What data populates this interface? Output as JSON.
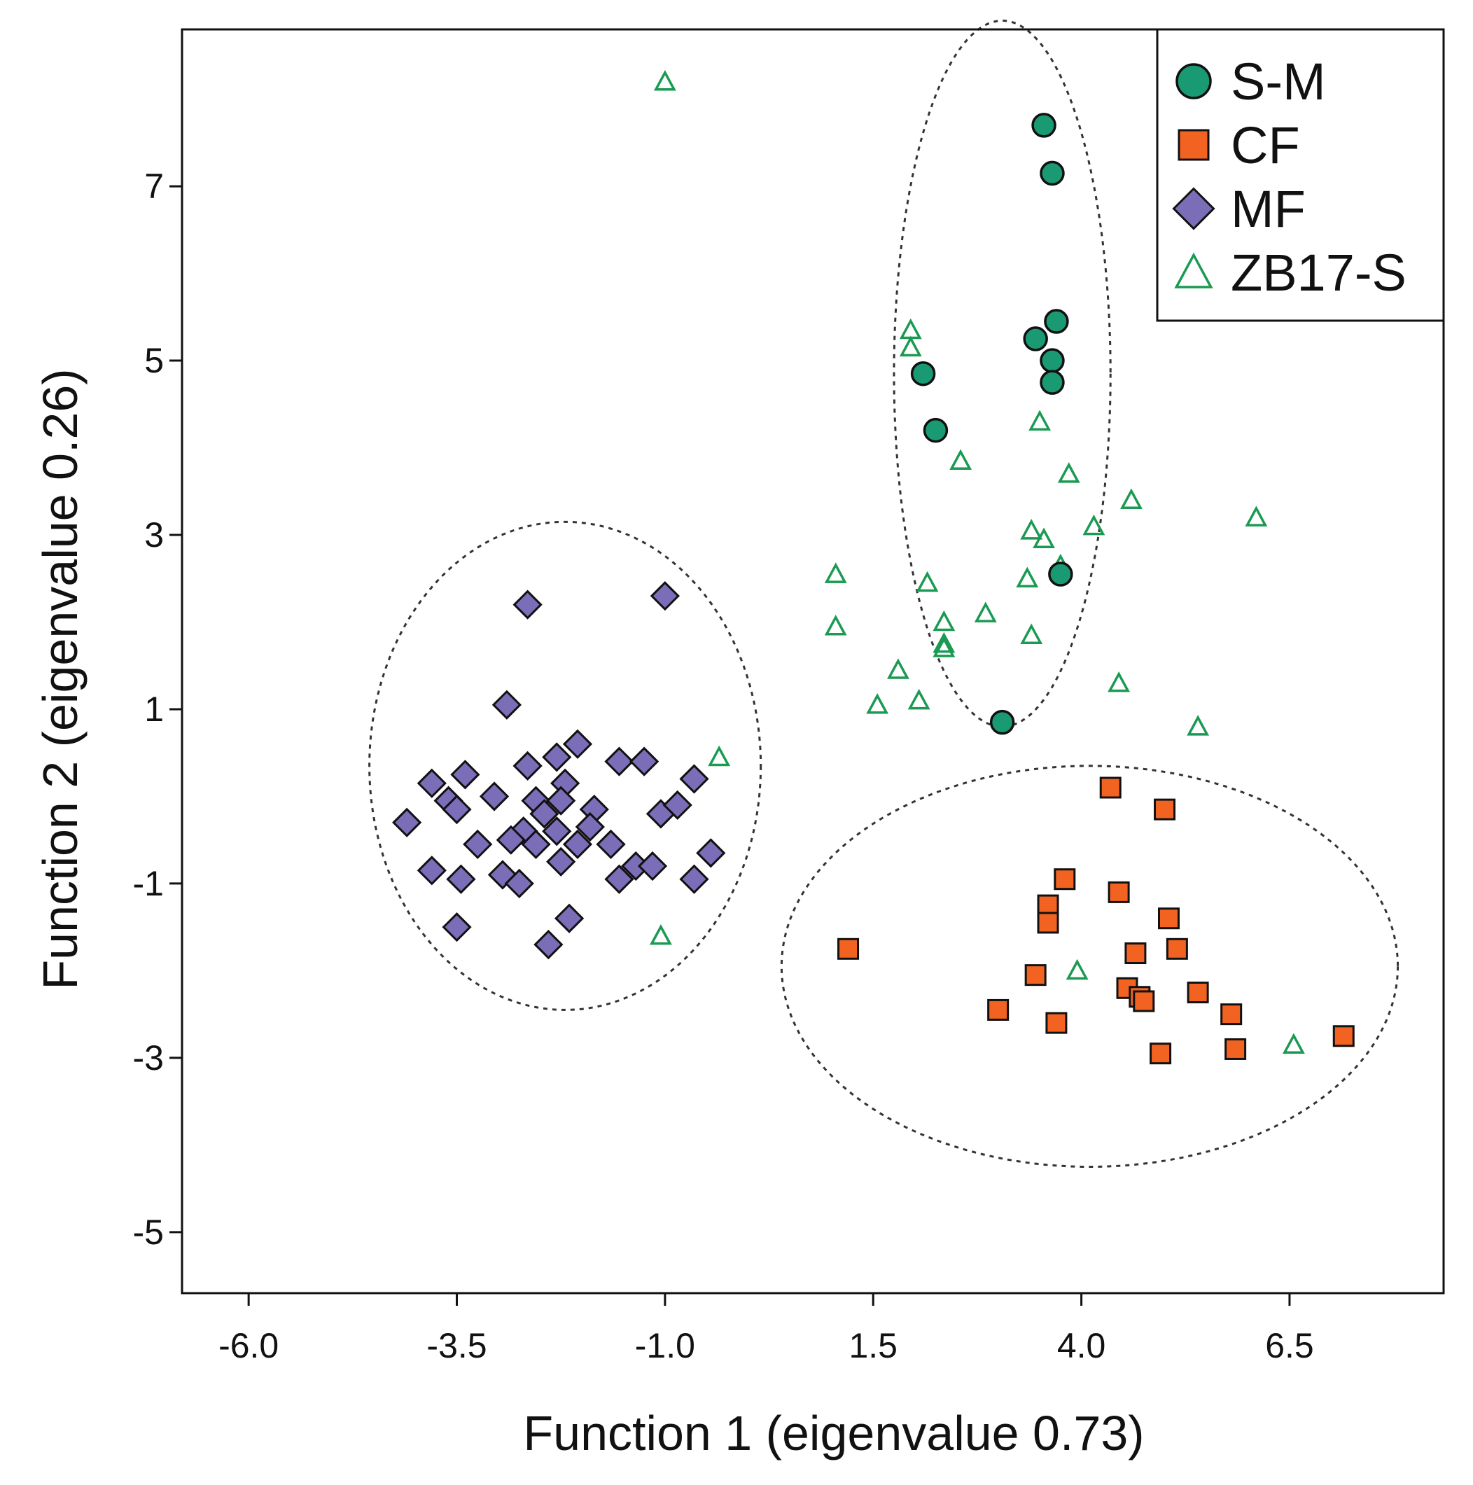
{
  "chart_data": {
    "type": "scatter",
    "title": "",
    "xlabel": "Function 1 (eigenvalue 0.73)",
    "ylabel": "Function 2 (eigenvalue 0.26)",
    "xlim": [
      -6.8,
      8.35
    ],
    "ylim": [
      -5.7,
      8.8
    ],
    "xticks": [
      -6.0,
      -3.5,
      -1.0,
      1.5,
      4.0,
      6.5
    ],
    "xtick_labels": [
      "-6.0",
      "-3.5",
      "-1.0",
      "1.5",
      "4.0",
      "6.5"
    ],
    "yticks": [
      -5,
      -3,
      -1,
      1,
      3,
      5,
      7
    ],
    "ytick_labels": [
      "-5",
      "-3",
      "-1",
      "1",
      "3",
      "5",
      "7"
    ],
    "grid": false,
    "legend_position": "top-right",
    "series": [
      {
        "name": "S-M",
        "marker": "circle",
        "color": "#1a9a72",
        "points": [
          [
            3.55,
            7.7
          ],
          [
            3.65,
            7.15
          ],
          [
            3.7,
            5.45
          ],
          [
            3.45,
            5.25
          ],
          [
            3.65,
            5.0
          ],
          [
            3.65,
            4.75
          ],
          [
            2.1,
            4.85
          ],
          [
            2.25,
            4.2
          ],
          [
            3.75,
            2.55
          ],
          [
            3.05,
            0.85
          ]
        ]
      },
      {
        "name": "CF",
        "marker": "square",
        "color": "#f26322",
        "points": [
          [
            4.35,
            0.1
          ],
          [
            5.0,
            -0.15
          ],
          [
            3.8,
            -0.95
          ],
          [
            4.45,
            -1.1
          ],
          [
            3.6,
            -1.25
          ],
          [
            3.6,
            -1.45
          ],
          [
            5.05,
            -1.4
          ],
          [
            5.15,
            -1.75
          ],
          [
            4.65,
            -1.8
          ],
          [
            1.2,
            -1.75
          ],
          [
            3.45,
            -2.05
          ],
          [
            4.55,
            -2.2
          ],
          [
            4.7,
            -2.3
          ],
          [
            4.75,
            -2.35
          ],
          [
            5.4,
            -2.25
          ],
          [
            3.0,
            -2.45
          ],
          [
            3.7,
            -2.6
          ],
          [
            5.8,
            -2.5
          ],
          [
            4.95,
            -2.95
          ],
          [
            5.85,
            -2.9
          ],
          [
            7.15,
            -2.75
          ]
        ]
      },
      {
        "name": "MF",
        "marker": "diamond",
        "color": "#7b6db8",
        "points": [
          [
            -2.65,
            2.2
          ],
          [
            -1.0,
            2.3
          ],
          [
            -2.9,
            1.05
          ],
          [
            -3.8,
            0.15
          ],
          [
            -3.4,
            0.25
          ],
          [
            -2.65,
            0.35
          ],
          [
            -2.3,
            0.45
          ],
          [
            -2.05,
            0.6
          ],
          [
            -1.55,
            0.4
          ],
          [
            -1.25,
            0.4
          ],
          [
            -0.65,
            0.2
          ],
          [
            -3.6,
            -0.05
          ],
          [
            -3.5,
            -0.15
          ],
          [
            -3.05,
            0.0
          ],
          [
            -2.55,
            -0.05
          ],
          [
            -2.2,
            0.15
          ],
          [
            -2.25,
            -0.05
          ],
          [
            -2.45,
            -0.2
          ],
          [
            -1.85,
            -0.15
          ],
          [
            -1.05,
            -0.2
          ],
          [
            -0.85,
            -0.1
          ],
          [
            -4.1,
            -0.3
          ],
          [
            -2.7,
            -0.4
          ],
          [
            -2.3,
            -0.4
          ],
          [
            -1.9,
            -0.35
          ],
          [
            -3.25,
            -0.55
          ],
          [
            -2.85,
            -0.5
          ],
          [
            -2.55,
            -0.55
          ],
          [
            -2.05,
            -0.55
          ],
          [
            -1.65,
            -0.55
          ],
          [
            -2.25,
            -0.75
          ],
          [
            -1.35,
            -0.8
          ],
          [
            -1.15,
            -0.8
          ],
          [
            -0.45,
            -0.65
          ],
          [
            -3.8,
            -0.85
          ],
          [
            -3.45,
            -0.95
          ],
          [
            -2.95,
            -0.9
          ],
          [
            -2.75,
            -1.0
          ],
          [
            -1.55,
            -0.95
          ],
          [
            -0.65,
            -0.95
          ],
          [
            -3.5,
            -1.5
          ],
          [
            -2.15,
            -1.4
          ],
          [
            -2.4,
            -1.7
          ]
        ]
      },
      {
        "name": "ZB17-S",
        "marker": "triangle",
        "color": "#1a9a52",
        "points": [
          [
            -1.0,
            8.2
          ],
          [
            1.95,
            5.35
          ],
          [
            1.95,
            5.15
          ],
          [
            3.5,
            4.3
          ],
          [
            2.55,
            3.85
          ],
          [
            3.85,
            3.7
          ],
          [
            4.6,
            3.4
          ],
          [
            6.1,
            3.2
          ],
          [
            4.15,
            3.1
          ],
          [
            3.4,
            3.05
          ],
          [
            3.55,
            2.95
          ],
          [
            3.75,
            2.65
          ],
          [
            1.05,
            2.55
          ],
          [
            2.15,
            2.45
          ],
          [
            3.35,
            2.5
          ],
          [
            2.85,
            2.1
          ],
          [
            2.35,
            2.0
          ],
          [
            1.05,
            1.95
          ],
          [
            3.4,
            1.85
          ],
          [
            2.35,
            1.75
          ],
          [
            2.35,
            1.7
          ],
          [
            1.8,
            1.45
          ],
          [
            2.05,
            1.1
          ],
          [
            1.55,
            1.05
          ],
          [
            4.45,
            1.3
          ],
          [
            5.4,
            0.8
          ],
          [
            -0.35,
            0.45
          ],
          [
            -1.05,
            -1.6
          ],
          [
            3.95,
            -2.0
          ],
          [
            6.55,
            -2.85
          ]
        ]
      }
    ],
    "ellipses": [
      {
        "group": "S-M",
        "cx": 3.05,
        "cy": 4.85,
        "rx": 1.3,
        "ry": 4.05
      },
      {
        "group": "MF",
        "cx": -2.2,
        "cy": 0.35,
        "rx": 2.35,
        "ry": 2.8
      },
      {
        "group": "CF",
        "cx": 4.1,
        "cy": -1.95,
        "rx": 3.7,
        "ry": 2.3
      }
    ]
  }
}
